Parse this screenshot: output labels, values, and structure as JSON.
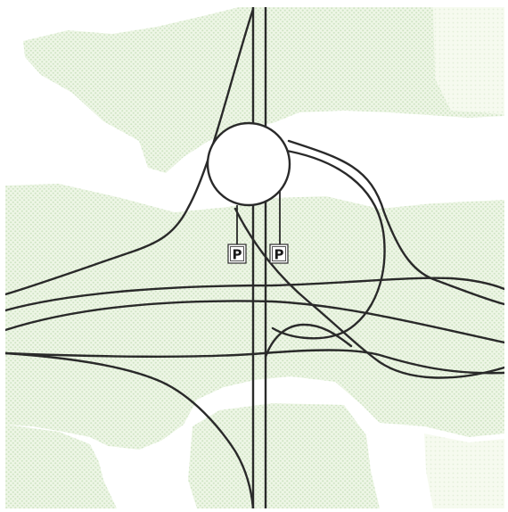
{
  "map": {
    "background_color": "#ffffff",
    "land_texture_color": "#d7e9cd",
    "land_tint_color": "#eef6e6",
    "road_color": "#2a2a2a",
    "roundabout_fill": "#ffffff"
  },
  "parking": {
    "left_label": "P",
    "right_label": "P"
  }
}
